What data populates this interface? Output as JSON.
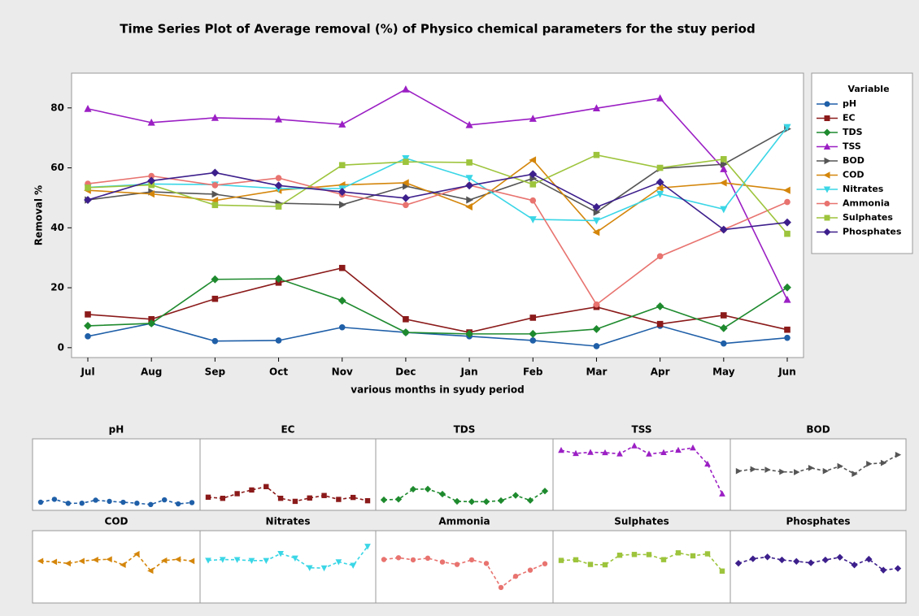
{
  "chart_data": {
    "type": "line",
    "title": "Time Series Plot of Average removal (%) of Physico chemical parameters for the stuy period",
    "x_label": "various months in syudy period",
    "y_label": "Removal %",
    "legend_title": "Variable",
    "legend": "right",
    "categories": [
      "Jul",
      "Aug",
      "Sep",
      "Oct",
      "Nov",
      "Dec",
      "Jan",
      "Feb",
      "Mar",
      "Apr",
      "May",
      "Jun"
    ],
    "ylim": [
      -3.3,
      91.6
    ],
    "yticks": [
      0,
      20,
      40,
      60,
      80
    ],
    "series": [
      {
        "name": "pH",
        "color": "#1f5fa8",
        "marker": "circle",
        "values": [
          3.8,
          8.1,
          2.2,
          2.4,
          6.8,
          5.1,
          3.8,
          2.4,
          0.5,
          7.3,
          1.4,
          3.3
        ]
      },
      {
        "name": "EC",
        "color": "#8b1a1a",
        "marker": "square",
        "values": [
          11.1,
          9.5,
          16.3,
          21.7,
          26.6,
          9.5,
          5.1,
          10.0,
          13.6,
          7.9,
          10.8,
          6.0
        ]
      },
      {
        "name": "TDS",
        "color": "#1e8a2e",
        "marker": "diamond",
        "values": [
          7.3,
          8.1,
          22.8,
          23.0,
          15.7,
          5.1,
          4.6,
          4.6,
          6.2,
          13.8,
          6.5,
          20.1
        ]
      },
      {
        "name": "TSS",
        "color": "#9b1fc4",
        "marker": "triangle-up",
        "values": [
          79.7,
          75.1,
          76.7,
          76.2,
          74.5,
          86.2,
          74.3,
          76.4,
          79.9,
          83.2,
          59.6,
          16.0
        ]
      },
      {
        "name": "BOD",
        "color": "#555555",
        "marker": "triangle-right",
        "values": [
          49.3,
          52.0,
          51.2,
          48.2,
          47.7,
          53.9,
          49.3,
          56.5,
          45.2,
          59.8,
          61.2,
          73.0
        ]
      },
      {
        "name": "COD",
        "color": "#d4860b",
        "marker": "triangle-left",
        "values": [
          52.5,
          51.3,
          49.1,
          52.5,
          54.3,
          55.0,
          47.0,
          62.6,
          38.5,
          53.3,
          55.0,
          52.5
        ]
      },
      {
        "name": "Nitrates",
        "color": "#3ad6e6",
        "marker": "triangle-down",
        "values": [
          53.5,
          54.6,
          54.4,
          53.1,
          53.1,
          63.2,
          56.6,
          42.8,
          42.4,
          51.3,
          46.2,
          73.6
        ]
      },
      {
        "name": "Ammonia",
        "color": "#e8736f",
        "marker": "circle",
        "values": [
          54.7,
          57.3,
          54.2,
          56.6,
          51.1,
          47.6,
          54.2,
          49.1,
          14.4,
          30.5,
          39.4,
          48.6
        ]
      },
      {
        "name": "Sulphates",
        "color": "#9dc43c",
        "marker": "square",
        "values": [
          53.4,
          54.3,
          47.6,
          47.1,
          60.9,
          62.0,
          61.8,
          54.5,
          64.3,
          60.0,
          62.9,
          38.0
        ]
      },
      {
        "name": "Phosphates",
        "color": "#3d1f8c",
        "marker": "diamond",
        "values": [
          49.3,
          55.7,
          58.4,
          54.1,
          52.0,
          49.9,
          54.1,
          57.9,
          46.9,
          55.2,
          39.4,
          41.8
        ]
      }
    ]
  }
}
